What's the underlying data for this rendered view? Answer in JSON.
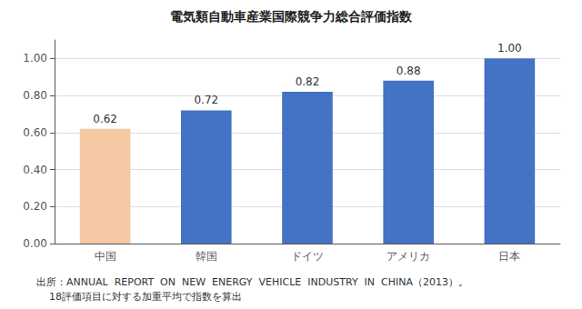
{
  "chart_data": {
    "type": "bar",
    "title": "電気類自動車産業国際競争力総合評価指数",
    "categories": [
      "中国",
      "韓国",
      "ドイツ",
      "アメリカ",
      "日本"
    ],
    "values": [
      0.62,
      0.72,
      0.82,
      0.88,
      1.0
    ],
    "value_labels": [
      "0.62",
      "0.72",
      "0.82",
      "0.88",
      "1.00"
    ],
    "data_labels": true,
    "colors": [
      "#f5c9a3",
      "#4472c4",
      "#4472c4",
      "#4472c4",
      "#4472c4"
    ],
    "ylim": [
      0,
      1.1
    ],
    "yticks": [
      {
        "value": 0.0,
        "label": "0.00"
      },
      {
        "value": 0.2,
        "label": "0.20"
      },
      {
        "value": 0.4,
        "label": "0.40"
      },
      {
        "value": 0.6,
        "label": "0.60"
      },
      {
        "value": 0.8,
        "label": "0.80"
      },
      {
        "value": 1.0,
        "label": "1.00"
      }
    ],
    "grid": true,
    "annotations": [
      "出所：ANNUAL  REPORT  ON  NEW  ENERGY  VEHICLE  INDUSTRY  IN  CHINA（2013）。",
      "    18評価項目に対する加重平均で指数を算出"
    ]
  }
}
